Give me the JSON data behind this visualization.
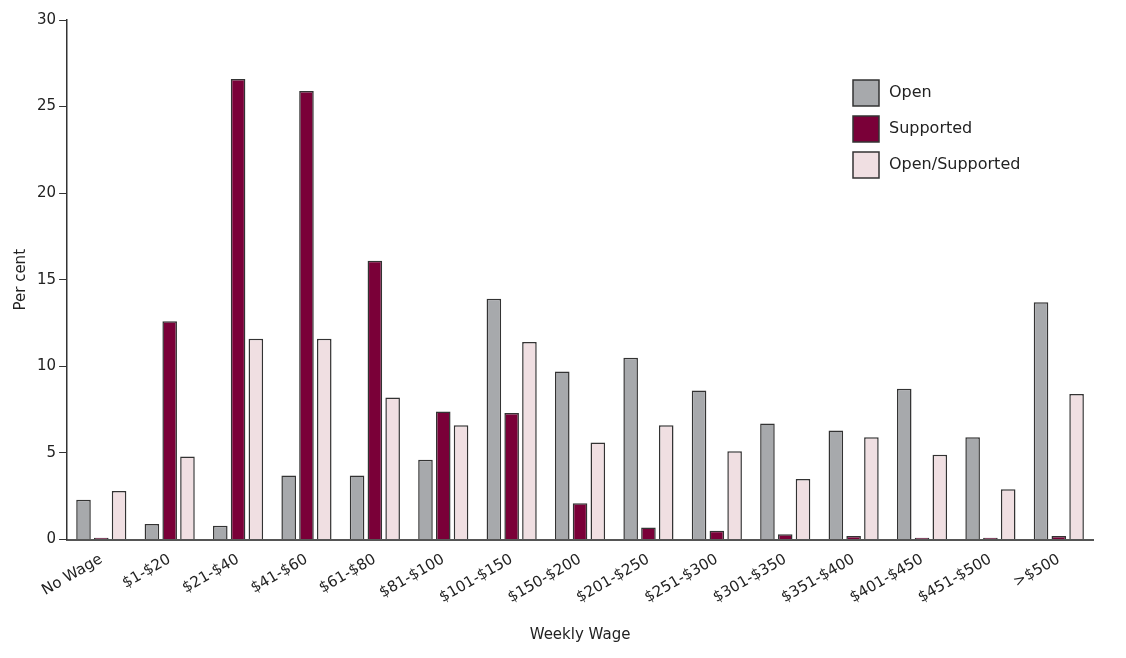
{
  "chart_data": {
    "type": "bar",
    "xlabel": "Weekly Wage",
    "ylabel": "Per cent",
    "categories": [
      "No Wage",
      "$1-$20",
      "$21-$40",
      "$41-$60",
      "$61-$80",
      "$81-$100",
      "$101-$150",
      "$150-$200",
      "$201-$250",
      "$251-$300",
      "$301-$350",
      "$351-$400",
      "$401-$450",
      "$451-$500",
      ">$500"
    ],
    "series": [
      {
        "name": "Open",
        "color": "#a7a9ac",
        "values": [
          2.3,
          0.9,
          0.8,
          3.7,
          3.7,
          4.6,
          13.9,
          9.7,
          10.5,
          8.6,
          6.7,
          6.3,
          8.7,
          5.9,
          13.7
        ]
      },
      {
        "name": "Supported",
        "color": "#7a0038",
        "values": [
          0.1,
          12.6,
          26.6,
          25.9,
          16.1,
          7.4,
          7.3,
          2.1,
          0.7,
          0.5,
          0.3,
          0.2,
          0.1,
          0.1,
          0.2
        ]
      },
      {
        "name": "Open/Supported",
        "color": "#f0dfe2",
        "values": [
          2.8,
          4.8,
          11.6,
          11.6,
          8.2,
          6.6,
          11.4,
          5.6,
          6.6,
          5.1,
          3.5,
          5.9,
          4.9,
          2.9,
          8.4
        ]
      }
    ],
    "ylim": [
      0,
      30
    ],
    "yticks": [
      0,
      5,
      10,
      15,
      20,
      25,
      30
    ],
    "grid": false,
    "legend": "top right"
  }
}
